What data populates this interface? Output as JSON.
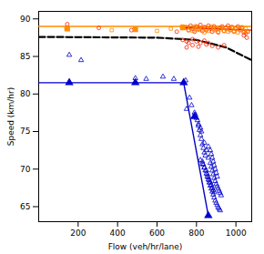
{
  "chart_data": {
    "type": "scatter",
    "xlabel": "Flow (veh/hr/lane)",
    "ylabel": "Speed (km/hr)",
    "xlim": [
      0,
      1080
    ],
    "ylim": [
      63,
      91
    ],
    "xticks": [
      200,
      400,
      600,
      800,
      1000
    ],
    "yticks": [
      65,
      70,
      75,
      80,
      85,
      90
    ],
    "grid": false,
    "series": [
      {
        "type": "scatter",
        "marker": "circle_open",
        "color": "#FF2200",
        "x": [
          145,
          305,
          470,
          700,
          730,
          730,
          750,
          760,
          770,
          780,
          790,
          800,
          810,
          820,
          830,
          840,
          850,
          860,
          870,
          880,
          890,
          900,
          910,
          920,
          930,
          940,
          950,
          960,
          970,
          980,
          990,
          1000,
          1010,
          1020,
          1030,
          1040,
          750,
          760,
          780,
          800,
          820,
          840,
          860,
          750,
          780,
          810,
          850,
          880,
          910,
          940,
          1040,
          1050,
          1055,
          1060
        ],
        "values": [
          89.3,
          88.8,
          88.5,
          88.3,
          88.8,
          87.2,
          88.9,
          88.5,
          89.1,
          88.7,
          88.3,
          89.0,
          88.6,
          89.2,
          88.4,
          88.9,
          88.5,
          89.1,
          88.7,
          88.3,
          89.0,
          88.6,
          88.2,
          88.8,
          89.0,
          88.4,
          88.8,
          89.1,
          88.5,
          88.9,
          88.3,
          88.7,
          89.0,
          88.5,
          88.8,
          88.2,
          87.0,
          86.8,
          87.3,
          87.0,
          86.8,
          87.1,
          86.8,
          86.2,
          86.5,
          86.3,
          86.6,
          86.4,
          86.2,
          86.5,
          87.8,
          88.1,
          87.5,
          88.3
        ]
      },
      {
        "type": "scatter",
        "marker": "square_open",
        "color": "#FF8C00",
        "x": [
          140,
          370,
          490,
          600,
          670,
          730,
          750,
          760,
          770,
          780,
          790,
          800,
          810,
          820,
          830,
          840,
          850,
          860,
          870,
          880,
          890,
          900,
          910,
          920,
          930,
          940,
          950,
          960,
          970,
          980,
          990,
          1000,
          1010,
          1020,
          1030,
          1040,
          1050,
          1060
        ],
        "values": [
          88.7,
          88.5,
          88.6,
          88.4,
          88.7,
          89.0,
          88.8,
          88.5,
          88.8,
          88.4,
          89.0,
          88.6,
          88.9,
          88.5,
          88.8,
          88.2,
          88.7,
          88.4,
          88.8,
          89.0,
          88.5,
          88.8,
          88.3,
          88.6,
          88.9,
          88.4,
          88.7,
          88.3,
          88.6,
          88.9,
          88.4,
          88.7,
          88.2,
          88.6,
          88.9,
          88.4,
          88.7,
          88.3
        ]
      },
      {
        "type": "scatter",
        "marker": "square",
        "color": "#FF8C00",
        "x": [
          145,
          490,
          730
        ],
        "values": [
          88.7,
          88.6,
          88.85
        ]
      },
      {
        "type": "line",
        "line_style": "solid",
        "color": "#FF8C00",
        "x": [
          0,
          1080
        ],
        "values": [
          89.0,
          89.0
        ]
      },
      {
        "type": "line",
        "line_style": "solid",
        "color": "#DD0000",
        "x": [
          730,
          1080
        ],
        "values": [
          88.85,
          88.5
        ]
      },
      {
        "type": "line",
        "line_style": "dashed",
        "color": "#000000",
        "x": [
          0,
          600,
          800,
          950,
          1080
        ],
        "values": [
          87.6,
          87.5,
          87.2,
          86.2,
          84.5
        ]
      },
      {
        "type": "scatter",
        "marker": "triangle_open",
        "color": "#0000CC",
        "x": [
          155,
          215,
          490,
          545,
          630,
          685,
          745,
          765,
          775,
          790,
          800,
          810,
          815,
          820,
          825,
          830,
          835,
          840,
          845,
          750,
          820,
          830,
          840,
          850,
          855,
          860,
          865,
          870,
          875,
          880,
          885,
          890,
          795,
          805,
          810,
          820,
          825,
          840,
          850,
          860,
          870,
          875,
          880,
          885,
          890,
          895,
          900,
          905,
          910,
          915,
          920,
          925,
          830,
          835,
          840,
          845,
          850,
          855,
          860,
          865,
          870,
          875,
          880,
          885,
          890,
          895,
          900,
          905,
          910,
          915,
          920,
          860,
          870,
          875,
          880,
          885,
          890,
          895,
          900,
          905
        ],
        "values": [
          85.2,
          84.5,
          82.1,
          82.0,
          82.3,
          82.0,
          81.8,
          79.5,
          78.5,
          77.5,
          76.8,
          75.8,
          75.2,
          74.5,
          74.0,
          73.3,
          72.8,
          72.2,
          71.8,
          78.0,
          71.2,
          70.7,
          70.2,
          69.8,
          69.3,
          68.9,
          68.5,
          68.2,
          67.9,
          67.5,
          67.2,
          66.9,
          77.2,
          76.5,
          76.0,
          75.5,
          75.0,
          73.5,
          72.5,
          71.5,
          70.8,
          70.3,
          69.8,
          69.3,
          68.8,
          68.4,
          68.0,
          67.7,
          67.4,
          67.1,
          66.8,
          66.5,
          71.0,
          70.6,
          70.2,
          69.8,
          69.4,
          69.0,
          68.6,
          68.2,
          67.8,
          67.4,
          67.0,
          66.6,
          66.2,
          65.8,
          65.5,
          65.2,
          64.9,
          64.7,
          64.5,
          73.0,
          72.5,
          72.0,
          71.5,
          71.0,
          70.5,
          70.0,
          69.5,
          69.0
        ]
      },
      {
        "type": "scatter",
        "marker": "triangle",
        "color": "#0000CC",
        "x": [
          155,
          490,
          735,
          790,
          860
        ],
        "values": [
          81.5,
          81.5,
          81.5,
          77.0,
          63.8
        ]
      },
      {
        "type": "line",
        "line_style": "solid",
        "color": "#0000CC",
        "x": [
          0,
          735,
          860
        ],
        "values": [
          81.5,
          81.5,
          63.8
        ]
      }
    ]
  }
}
